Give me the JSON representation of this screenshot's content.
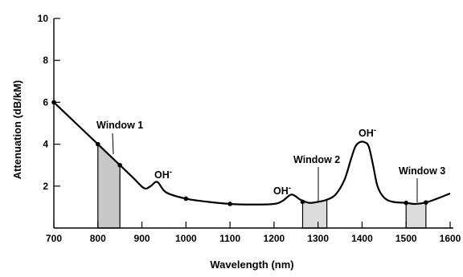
{
  "chart_data": {
    "type": "line",
    "title": "",
    "xlabel": "Wavelength (nm)",
    "ylabel": "Attenuation (dB/kM)",
    "xlim": [
      700,
      1600
    ],
    "ylim": [
      0,
      10
    ],
    "x_ticks": [
      700,
      800,
      900,
      1000,
      1100,
      1200,
      1300,
      1400,
      1500,
      1600
    ],
    "y_ticks": [
      2,
      4,
      6,
      8,
      10
    ],
    "grid": false,
    "series": [
      {
        "x": [
          700,
          750,
          800,
          850,
          880,
          905,
          920,
          935,
          955,
          1000,
          1050,
          1100,
          1150,
          1200,
          1220,
          1240,
          1260,
          1280,
          1300,
          1320,
          1340,
          1360,
          1375,
          1385,
          1395,
          1405,
          1415,
          1425,
          1435,
          1450,
          1470,
          1500,
          1520,
          1545,
          1570,
          1600
        ],
        "y": [
          6.0,
          5.0,
          4.0,
          3.0,
          2.4,
          1.9,
          2.0,
          2.2,
          1.7,
          1.4,
          1.25,
          1.15,
          1.12,
          1.15,
          1.3,
          1.6,
          1.35,
          1.2,
          1.25,
          1.35,
          1.6,
          2.3,
          3.3,
          3.9,
          4.1,
          4.1,
          3.9,
          3.0,
          2.0,
          1.45,
          1.25,
          1.2,
          1.15,
          1.22,
          1.4,
          1.65
        ]
      }
    ],
    "markers": [
      {
        "x": 700,
        "y": 6.0
      },
      {
        "x": 800,
        "y": 4.0
      },
      {
        "x": 850,
        "y": 3.0
      },
      {
        "x": 1000,
        "y": 1.4
      },
      {
        "x": 1100,
        "y": 1.15
      },
      {
        "x": 1265,
        "y": 1.25
      },
      {
        "x": 1500,
        "y": 1.2
      },
      {
        "x": 1545,
        "y": 1.22
      }
    ],
    "windows": [
      {
        "label": "Window 1",
        "x": [
          800,
          850
        ],
        "fill": "#c8c8c8"
      },
      {
        "label": "Window 2",
        "x": [
          1265,
          1320
        ],
        "fill": "#dcdcdc"
      },
      {
        "label": "Window 3",
        "x": [
          1500,
          1545
        ],
        "fill": "#dcdcdc"
      }
    ],
    "annotations": [
      {
        "text": "Window 1",
        "near": "window-1"
      },
      {
        "text": "OH",
        "superscript": "-",
        "x": 935
      },
      {
        "text": "OH",
        "superscript": "-",
        "x": 1240
      },
      {
        "text": "Window 2",
        "near": "window-2"
      },
      {
        "text": "OH",
        "superscript": "-",
        "x": 1405
      },
      {
        "text": "Window 3",
        "near": "window-3"
      }
    ]
  }
}
